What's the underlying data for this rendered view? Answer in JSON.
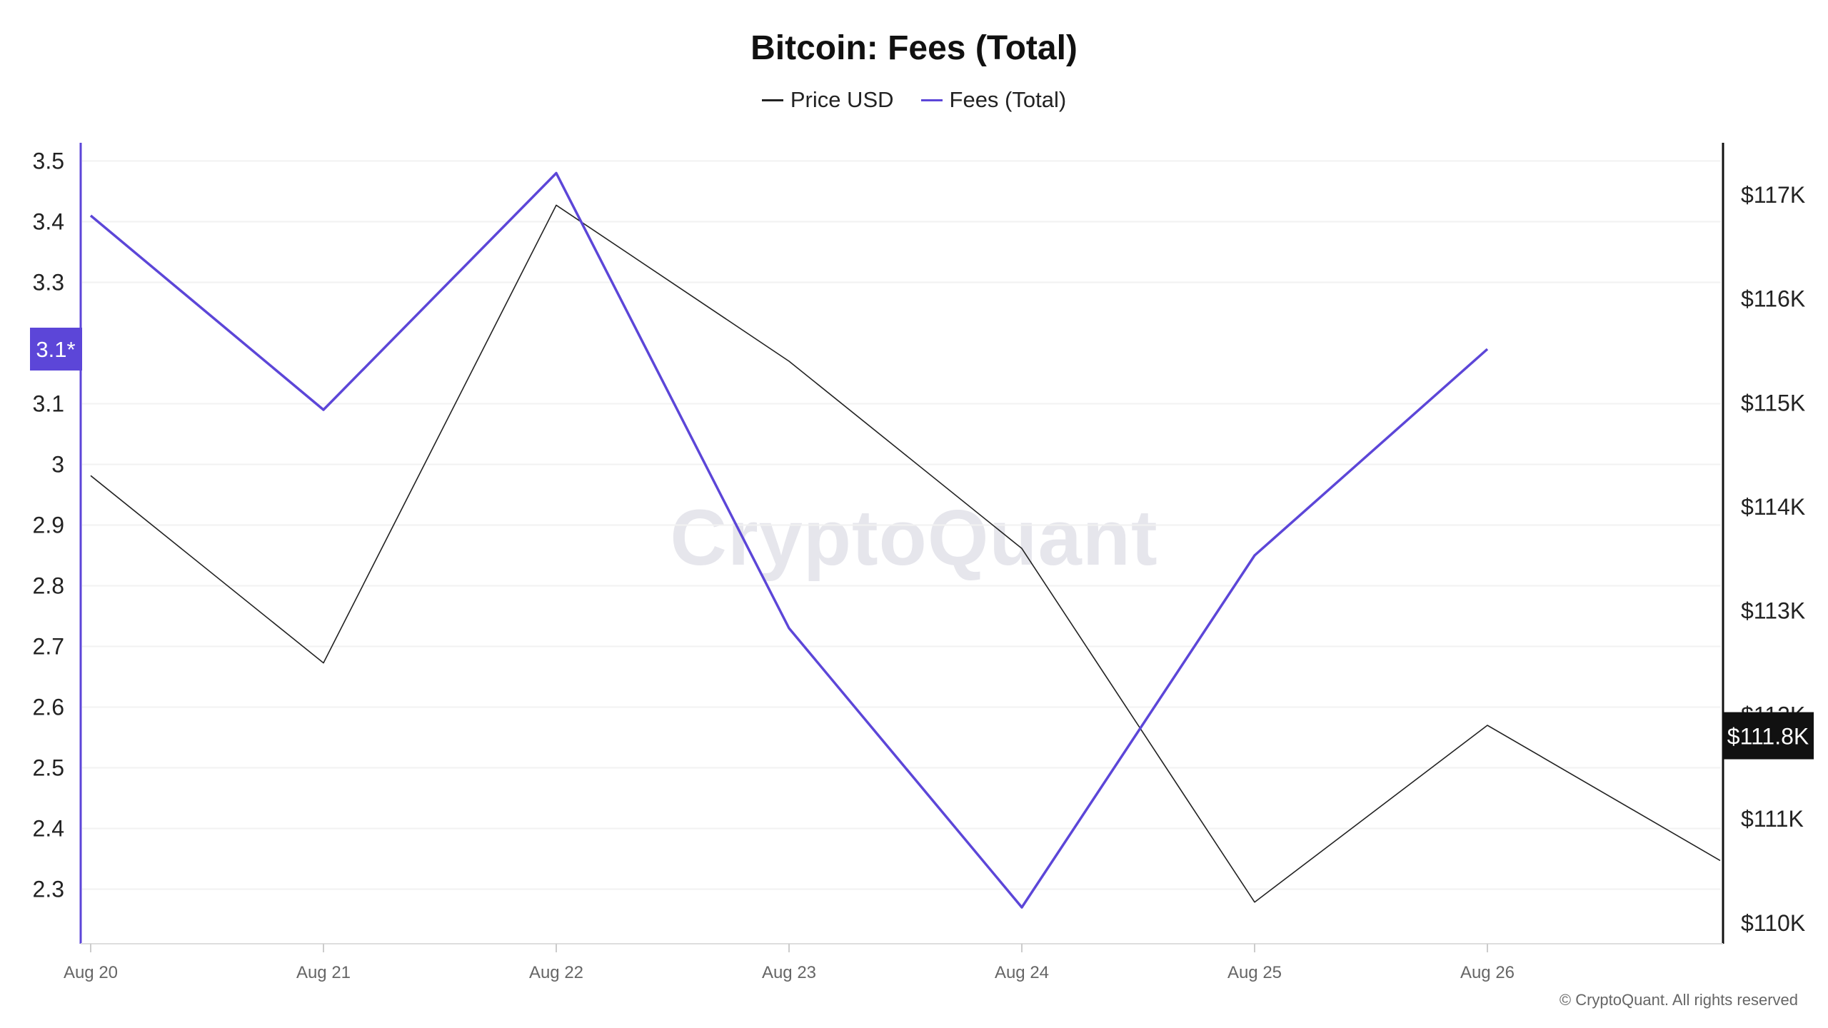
{
  "title": "Bitcoin: Fees (Total)",
  "legend": [
    {
      "label": "Price USD",
      "color": "#222222"
    },
    {
      "label": "Fees (Total)",
      "color": "#5c46d8"
    }
  ],
  "watermark": "CryptoQuant",
  "copyright": "© CryptoQuant. All rights reserved",
  "chart_data": {
    "type": "line",
    "title": "Bitcoin: Fees (Total)",
    "x": [
      "Aug 20",
      "Aug 21",
      "Aug 22",
      "Aug 23",
      "Aug 24",
      "Aug 25",
      "Aug 26",
      ""
    ],
    "x_tick_labels": [
      "Aug 20",
      "Aug 21",
      "Aug 22",
      "Aug 23",
      "Aug 24",
      "Aug 25",
      "Aug 26"
    ],
    "series": [
      {
        "name": "Price USD",
        "axis": "right",
        "color": "#222222",
        "values": [
          114.3,
          112.5,
          116.9,
          115.4,
          113.6,
          110.2,
          111.9,
          110.6
        ]
      },
      {
        "name": "Fees (Total)",
        "axis": "left",
        "color": "#5c46d8",
        "values": [
          3.41,
          3.09,
          3.48,
          2.73,
          2.27,
          2.85,
          3.19,
          null
        ]
      }
    ],
    "y_left": {
      "ticks": [
        "2.3",
        "2.4",
        "2.5",
        "2.6",
        "2.7",
        "2.8",
        "2.9",
        "3",
        "3.1",
        "3.3",
        "3.4",
        "3.5"
      ],
      "tick_values": [
        2.3,
        2.4,
        2.5,
        2.6,
        2.7,
        2.8,
        2.9,
        3.0,
        3.1,
        3.3,
        3.4,
        3.5
      ],
      "range": [
        2.21,
        3.53
      ]
    },
    "y_right": {
      "ticks": [
        "$110K",
        "$111K",
        "$112K",
        "$113K",
        "$114K",
        "$115K",
        "$116K",
        "$117K"
      ],
      "tick_values": [
        110,
        111,
        112,
        113,
        114,
        115,
        116,
        117
      ],
      "range": [
        109.8,
        117.5
      ]
    },
    "markers": {
      "left": "3.1*",
      "left_value": 3.19,
      "right": "$111.8K",
      "right_value": 111.8
    },
    "grid": true
  }
}
